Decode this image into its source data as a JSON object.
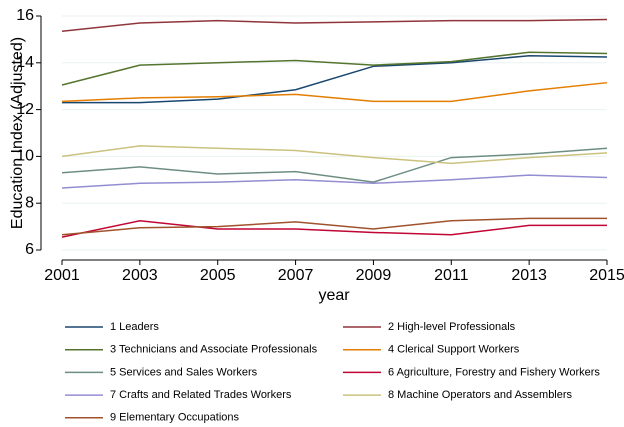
{
  "chart_data": {
    "type": "line",
    "x_label": "year",
    "y_label": "Education Index (Adjusted)",
    "x": [
      2001,
      2003,
      2005,
      2007,
      2009,
      2011,
      2013,
      2015
    ],
    "xlim": [
      2001,
      2015
    ],
    "xticks": [
      2001,
      2003,
      2005,
      2007,
      2009,
      2011,
      2013,
      2015
    ],
    "ylim": [
      6,
      16
    ],
    "yticks": [
      6,
      8,
      10,
      12,
      14,
      16
    ],
    "grid": true,
    "series": [
      {
        "name": "1 Leaders",
        "color": "#1a476f",
        "values": [
          12.3,
          12.3,
          12.45,
          12.85,
          13.85,
          14.0,
          14.3,
          14.25
        ]
      },
      {
        "name": "2 High-level Professionals",
        "color": "#90353b",
        "values": [
          15.35,
          15.7,
          15.8,
          15.7,
          15.75,
          15.8,
          15.8,
          15.85
        ]
      },
      {
        "name": "3 Technicians and Associate Professionals",
        "color": "#55752f",
        "values": [
          13.05,
          13.9,
          14.0,
          14.1,
          13.9,
          14.05,
          14.45,
          14.4
        ]
      },
      {
        "name": "4 Clerical Support Workers",
        "color": "#e37e00",
        "values": [
          12.35,
          12.5,
          12.55,
          12.65,
          12.35,
          12.35,
          12.8,
          13.15
        ]
      },
      {
        "name": "5 Services and Sales Workers",
        "color": "#6e8e84",
        "values": [
          9.3,
          9.55,
          9.25,
          9.35,
          8.9,
          9.95,
          10.1,
          10.35
        ]
      },
      {
        "name": "6 Agriculture, Forestry and Fishery Workers",
        "color": "#c10534",
        "values": [
          6.55,
          7.25,
          6.9,
          6.9,
          6.75,
          6.65,
          7.05,
          7.05
        ]
      },
      {
        "name": "7 Crafts and Related Trades Workers",
        "color": "#938dd2",
        "values": [
          8.65,
          8.85,
          8.9,
          9.0,
          8.85,
          9.0,
          9.2,
          9.1
        ]
      },
      {
        "name": "8 Machine Operators and Assemblers",
        "color": "#cac27e",
        "values": [
          10.0,
          10.45,
          10.35,
          10.25,
          9.95,
          9.7,
          9.95,
          10.15
        ]
      },
      {
        "name": "9 Elementary Occupations",
        "color": "#a0522d",
        "values": [
          6.65,
          6.95,
          7.0,
          7.2,
          6.9,
          7.25,
          7.35,
          7.35
        ]
      }
    ]
  }
}
